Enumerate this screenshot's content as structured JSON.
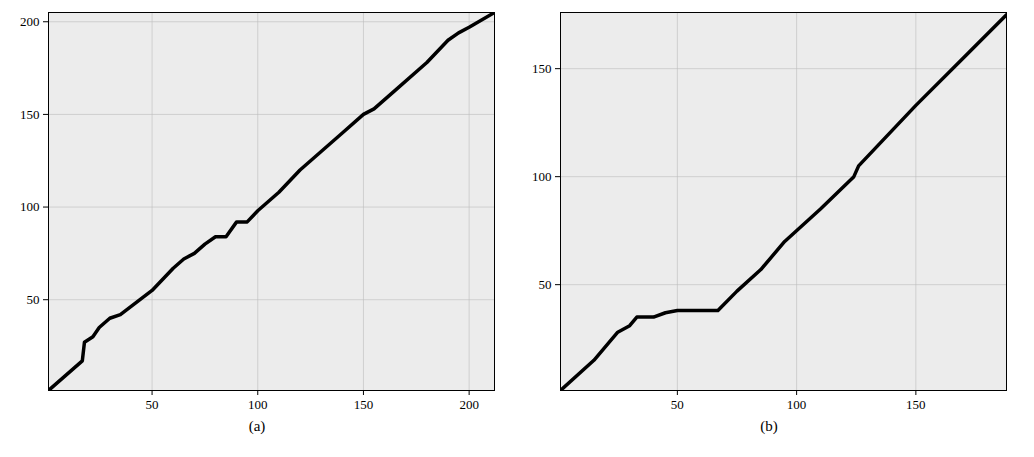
{
  "chart_data": [
    {
      "type": "line",
      "caption": "(a)",
      "x": [
        1,
        17,
        18,
        22,
        25,
        30,
        35,
        50,
        60,
        65,
        70,
        75,
        80,
        85,
        90,
        95,
        100,
        110,
        120,
        130,
        140,
        150,
        155,
        165,
        180,
        190,
        195,
        200,
        212
      ],
      "values": [
        1,
        17,
        27,
        30,
        35,
        40,
        42,
        55,
        67,
        72,
        75,
        80,
        84,
        84,
        92,
        92,
        98,
        108,
        120,
        130,
        140,
        150,
        153,
        163,
        178,
        190,
        194,
        197,
        205
      ],
      "color": "#000000",
      "xlim": [
        1,
        212
      ],
      "ylim": [
        1,
        205
      ],
      "xticks": [
        50,
        100,
        150,
        200
      ],
      "yticks": [
        50,
        100,
        150,
        200
      ]
    },
    {
      "type": "line",
      "caption": "(b)",
      "x": [
        1,
        15,
        25,
        30,
        33,
        40,
        45,
        50,
        67,
        75,
        85,
        95,
        110,
        124,
        126,
        150,
        170,
        188
      ],
      "values": [
        1,
        15,
        28,
        31,
        35,
        35,
        37,
        38,
        38,
        47,
        57,
        70,
        85,
        100,
        105,
        133,
        155,
        175
      ],
      "color": "#000000",
      "xlim": [
        1,
        188
      ],
      "ylim": [
        1,
        176
      ],
      "xticks": [
        50,
        100,
        150
      ],
      "yticks": [
        50,
        100,
        150
      ]
    }
  ]
}
